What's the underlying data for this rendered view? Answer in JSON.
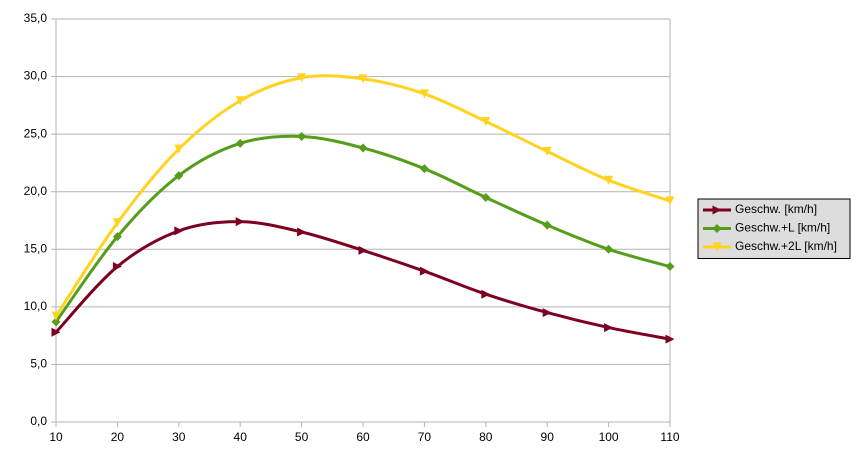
{
  "chart_data": {
    "type": "line",
    "x": [
      10,
      20,
      30,
      40,
      50,
      60,
      70,
      80,
      90,
      100,
      110
    ],
    "xlim": [
      10,
      110
    ],
    "xticks": [
      10,
      20,
      30,
      40,
      50,
      60,
      70,
      80,
      90,
      100,
      110
    ],
    "ylim": [
      0,
      35
    ],
    "yticks": [
      {
        "value": 0,
        "label": "0,0"
      },
      {
        "value": 5,
        "label": "5,0"
      },
      {
        "value": 10,
        "label": "10,0"
      },
      {
        "value": 15,
        "label": "15,0"
      },
      {
        "value": 20,
        "label": "20,0"
      },
      {
        "value": 25,
        "label": "25,0"
      },
      {
        "value": 30,
        "label": "30,0"
      },
      {
        "value": 35,
        "label": "35,0"
      }
    ],
    "grid": true,
    "smooth": true,
    "legend": "right",
    "series": [
      {
        "name": "Geschw. [km/h]",
        "color": "#7e0021",
        "marker": "triangle-right",
        "values": [
          7.8,
          13.5,
          16.6,
          17.4,
          16.5,
          14.9,
          13.1,
          11.1,
          9.5,
          8.2,
          7.2
        ]
      },
      {
        "name": "Geschw.+L [km/h]",
        "color": "#579d1c",
        "marker": "diamond",
        "values": [
          8.7,
          16.1,
          21.4,
          24.2,
          24.8,
          23.8,
          22.0,
          19.5,
          17.1,
          15.0,
          13.5
        ]
      },
      {
        "name": "Geschw.+2L [km/h]",
        "color": "#ffd320",
        "marker": "triangle-down",
        "values": [
          9.2,
          17.3,
          23.7,
          27.9,
          29.9,
          29.8,
          28.5,
          26.1,
          23.5,
          21.0,
          19.2
        ]
      }
    ]
  }
}
